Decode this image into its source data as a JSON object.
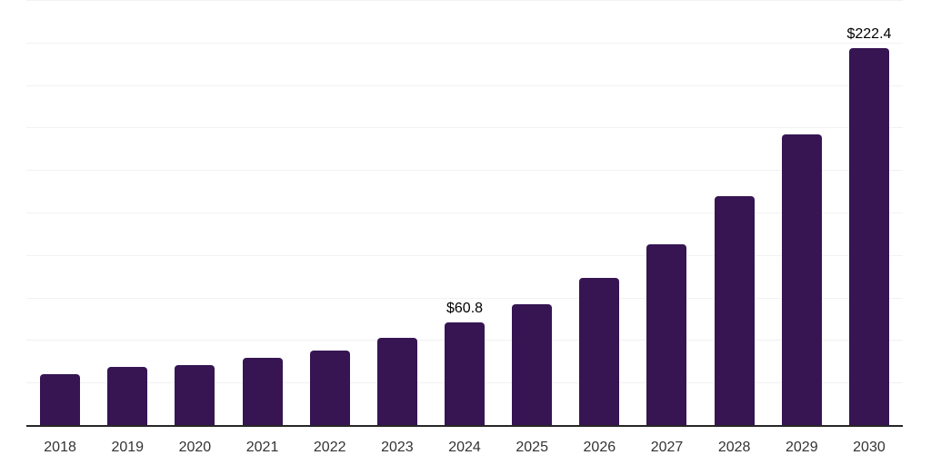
{
  "chart_data": {
    "type": "bar",
    "title": "",
    "xlabel": "",
    "ylabel": "",
    "categories": [
      "2018",
      "2019",
      "2020",
      "2021",
      "2022",
      "2023",
      "2024",
      "2025",
      "2026",
      "2027",
      "2028",
      "2029",
      "2030"
    ],
    "values": [
      30.3,
      34.5,
      35.6,
      40.0,
      44.5,
      51.8,
      60.8,
      71.7,
      87.2,
      106.8,
      135.3,
      171.5,
      222.4
    ],
    "data_labels": [
      "",
      "",
      "",
      "",
      "",
      "",
      "$60.8",
      "",
      "",
      "",
      "",
      "",
      "$222.4"
    ],
    "ylim": [
      0,
      250
    ],
    "gridline_step": 25,
    "grid": "horizontal-only",
    "legend": "none",
    "y_tick_labels_visible": false,
    "colors": {
      "bar": "#361552",
      "gridline": "#f2f2f2",
      "axis_line": "#262626",
      "tick_label": "#333333",
      "data_label": "#000000",
      "background": "#ffffff"
    }
  }
}
